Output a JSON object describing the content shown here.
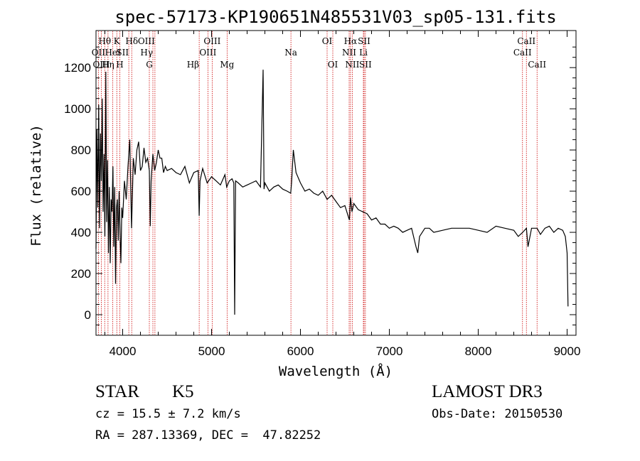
{
  "chart_data": {
    "type": "line",
    "title": "spec-57173-KP190651N485531V03_sp05-131.fits",
    "xlabel": "Wavelength (Å)",
    "ylabel": "Flux (relative)",
    "xlim": [
      3700,
      9100
    ],
    "ylim": [
      -100,
      1380
    ],
    "xticks": [
      4000,
      5000,
      6000,
      7000,
      8000,
      9000
    ],
    "yticks": [
      0,
      200,
      400,
      600,
      800,
      1000,
      1200
    ],
    "xtick_labels": [
      "4000",
      "5000",
      "6000",
      "7000",
      "8000",
      "9000"
    ],
    "ytick_labels": [
      "0",
      "200",
      "400",
      "600",
      "800",
      "1000",
      "1200"
    ],
    "grid": false,
    "series": [
      {
        "name": "spectrum",
        "x": [
          3700,
          3710,
          3720,
          3730,
          3740,
          3750,
          3760,
          3770,
          3780,
          3790,
          3800,
          3810,
          3820,
          3830,
          3840,
          3850,
          3860,
          3870,
          3880,
          3890,
          3900,
          3910,
          3920,
          3930,
          3940,
          3950,
          3960,
          3970,
          3980,
          3990,
          4000,
          4020,
          4040,
          4060,
          4080,
          4100,
          4120,
          4140,
          4160,
          4180,
          4200,
          4220,
          4240,
          4260,
          4280,
          4300,
          4310,
          4320,
          4340,
          4360,
          4380,
          4400,
          4420,
          4440,
          4460,
          4480,
          4500,
          4550,
          4600,
          4650,
          4700,
          4750,
          4800,
          4850,
          4861,
          4870,
          4900,
          4950,
          5000,
          5050,
          5100,
          5150,
          5170,
          5200,
          5230,
          5250,
          5260,
          5270,
          5300,
          5350,
          5400,
          5450,
          5500,
          5550,
          5580,
          5590,
          5600,
          5650,
          5700,
          5750,
          5800,
          5850,
          5890,
          5900,
          5920,
          5950,
          6000,
          6050,
          6100,
          6150,
          6200,
          6250,
          6300,
          6350,
          6400,
          6450,
          6500,
          6550,
          6563,
          6580,
          6600,
          6650,
          6700,
          6750,
          6800,
          6850,
          6900,
          6950,
          7000,
          7050,
          7100,
          7150,
          7200,
          7250,
          7300,
          7320,
          7340,
          7400,
          7450,
          7500,
          7600,
          7700,
          7800,
          7900,
          8000,
          8100,
          8200,
          8300,
          8400,
          8450,
          8500,
          8542,
          8560,
          8600,
          8662,
          8700,
          8750,
          8800,
          8850,
          8900,
          8950,
          8980,
          9000,
          9010
        ],
        "values": [
          320,
          900,
          520,
          1020,
          420,
          880,
          650,
          1050,
          500,
          780,
          380,
          1180,
          450,
          750,
          300,
          620,
          250,
          560,
          500,
          720,
          330,
          620,
          150,
          520,
          560,
          360,
          600,
          400,
          250,
          520,
          470,
          650,
          560,
          720,
          850,
          420,
          760,
          680,
          800,
          840,
          700,
          720,
          810,
          740,
          760,
          700,
          430,
          650,
          780,
          700,
          740,
          800,
          760,
          760,
          690,
          720,
          700,
          710,
          690,
          680,
          720,
          640,
          690,
          700,
          480,
          650,
          710,
          640,
          670,
          650,
          630,
          680,
          620,
          650,
          660,
          640,
          0,
          650,
          640,
          620,
          630,
          640,
          650,
          620,
          1190,
          610,
          640,
          600,
          620,
          630,
          610,
          600,
          590,
          640,
          800,
          690,
          640,
          600,
          610,
          590,
          580,
          600,
          560,
          580,
          550,
          520,
          530,
          460,
          570,
          500,
          540,
          510,
          500,
          490,
          460,
          470,
          440,
          440,
          420,
          430,
          420,
          400,
          410,
          420,
          330,
          300,
          380,
          420,
          420,
          400,
          410,
          420,
          420,
          420,
          410,
          400,
          430,
          420,
          410,
          380,
          400,
          420,
          330,
          420,
          420,
          390,
          420,
          430,
          400,
          420,
          410,
          380,
          300,
          40
        ]
      }
    ],
    "line_markers": [
      {
        "label": "Hθ",
        "wavelength": 3798,
        "row": 1,
        "anchor": "middle"
      },
      {
        "label": "OII",
        "wavelength": 3727,
        "row": 2,
        "anchor": "middle"
      },
      {
        "label": "OIII",
        "wavelength": 3760,
        "row": 3,
        "anchor": "middle"
      },
      {
        "label": "Hη",
        "wavelength": 3835,
        "row": 3,
        "anchor": "middle"
      },
      {
        "label": "K",
        "wavelength": 3934,
        "row": 1,
        "anchor": "middle"
      },
      {
        "label": "HeI",
        "wavelength": 3889,
        "row": 2,
        "anchor": "middle"
      },
      {
        "label": "SII",
        "wavelength": 4069,
        "row": 2,
        "anchor": "end"
      },
      {
        "label": "H",
        "wavelength": 3968,
        "row": 3,
        "anchor": "middle"
      },
      {
        "label": "Hδ",
        "wavelength": 4102,
        "row": 1,
        "anchor": "middle"
      },
      {
        "label": "OIII",
        "wavelength": 4363,
        "row": 1,
        "anchor": "end"
      },
      {
        "label": "Hγ",
        "wavelength": 4340,
        "row": 2,
        "anchor": "end"
      },
      {
        "label": "G",
        "wavelength": 4300,
        "row": 3,
        "anchor": "middle"
      },
      {
        "label": "OIII",
        "wavelength": 5007,
        "row": 1,
        "anchor": "middle"
      },
      {
        "label": "OIII",
        "wavelength": 4959,
        "row": 2,
        "anchor": "middle"
      },
      {
        "label": "Hβ",
        "wavelength": 4861,
        "row": 3,
        "anchor": "end"
      },
      {
        "label": "Mg",
        "wavelength": 5175,
        "row": 3,
        "anchor": "middle"
      },
      {
        "label": "Na",
        "wavelength": 5893,
        "row": 2,
        "anchor": "middle"
      },
      {
        "label": "OI",
        "wavelength": 6300,
        "row": 1,
        "anchor": "middle"
      },
      {
        "label": "OI",
        "wavelength": 6364,
        "row": 3,
        "anchor": "middle"
      },
      {
        "label": "Hα",
        "wavelength": 6563,
        "row": 1,
        "anchor": "middle"
      },
      {
        "label": "SII",
        "wavelength": 6716,
        "row": 1,
        "anchor": "middle"
      },
      {
        "label": "NII",
        "wavelength": 6548,
        "row": 2,
        "anchor": "middle"
      },
      {
        "label": "Li",
        "wavelength": 6708,
        "row": 2,
        "anchor": "middle"
      },
      {
        "label": "NII",
        "wavelength": 6583,
        "row": 3,
        "anchor": "middle"
      },
      {
        "label": "SII",
        "wavelength": 6731,
        "row": 3,
        "anchor": "middle"
      },
      {
        "label": "CaII",
        "wavelength": 8542,
        "row": 1,
        "anchor": "middle"
      },
      {
        "label": "CaII",
        "wavelength": 8498,
        "row": 2,
        "anchor": "middle"
      },
      {
        "label": "CaII",
        "wavelength": 8662,
        "row": 3,
        "anchor": "middle"
      }
    ],
    "marker_color": "#cc0000",
    "line_color": "#000000"
  },
  "info": {
    "class_label": "STAR",
    "subclass_label": "K5",
    "redshift_text": "cz = 15.5 ± 7.2 km/s",
    "coords_text": "RA = 287.13369, DEC =  47.82252",
    "survey_label": "LAMOST DR3",
    "obs_date_text": "Obs-Date: 20150530"
  }
}
